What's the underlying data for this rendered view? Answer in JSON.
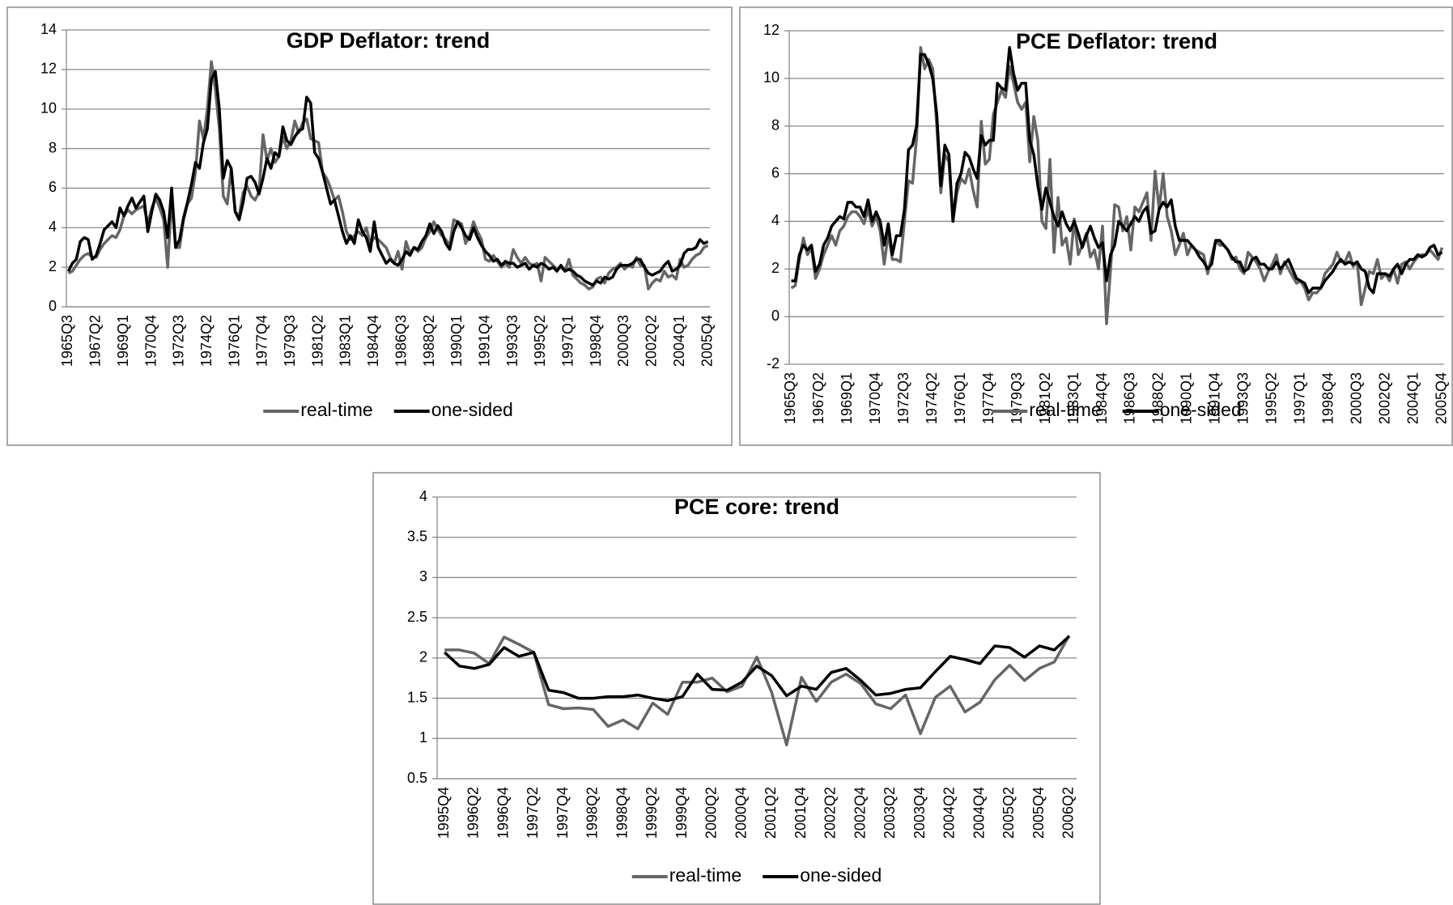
{
  "chart_data": [
    {
      "type": "line",
      "title": "GDP Deflator: trend",
      "categories": [
        "1965Q3",
        null,
        null,
        null,
        null,
        null,
        null,
        "1967Q2",
        null,
        null,
        null,
        null,
        null,
        null,
        "1969Q1",
        null,
        null,
        null,
        null,
        null,
        null,
        "1970Q4",
        null,
        null,
        null,
        null,
        null,
        null,
        "1972Q3",
        null,
        null,
        null,
        null,
        null,
        null,
        "1974Q2",
        null,
        null,
        null,
        null,
        null,
        null,
        "1976Q1",
        null,
        null,
        null,
        null,
        null,
        null,
        "1977Q4",
        null,
        null,
        null,
        null,
        null,
        null,
        "1979Q3",
        null,
        null,
        null,
        null,
        null,
        null,
        "1981Q2",
        null,
        null,
        null,
        null,
        null,
        null,
        "1983Q1",
        null,
        null,
        null,
        null,
        null,
        null,
        "1984Q4",
        null,
        null,
        null,
        null,
        null,
        null,
        "1986Q3",
        null,
        null,
        null,
        null,
        null,
        null,
        "1988Q2",
        null,
        null,
        null,
        null,
        null,
        null,
        "1990Q1",
        null,
        null,
        null,
        null,
        null,
        null,
        "1991Q4",
        null,
        null,
        null,
        null,
        null,
        null,
        "1993Q3",
        null,
        null,
        null,
        null,
        null,
        null,
        "1995Q2",
        null,
        null,
        null,
        null,
        null,
        null,
        "1997Q1",
        null,
        null,
        null,
        null,
        null,
        null,
        "1998Q4",
        null,
        null,
        null,
        null,
        null,
        null,
        "2000Q3",
        null,
        null,
        null,
        null,
        null,
        null,
        "2002Q2",
        null,
        null,
        null,
        null,
        null,
        null,
        "2004Q1",
        null,
        null,
        null,
        null,
        null,
        null,
        "2005Q4"
      ],
      "series": [
        {
          "name": "real-time",
          "color": "#666666",
          "values": [
            1.7,
            1.8,
            2.1,
            2.4,
            2.6,
            2.7,
            2.5,
            2.5,
            2.9,
            3.2,
            3.4,
            3.6,
            3.5,
            3.9,
            4.6,
            4.9,
            4.7,
            4.9,
            5.0,
            5.1,
            4.2,
            5.0,
            5.5,
            5.0,
            4.4,
            2.0,
            5.5,
            3.0,
            3.0,
            4.4,
            5.2,
            5.5,
            6.8,
            9.4,
            8.5,
            10.0,
            12.4,
            11.0,
            9.0,
            5.6,
            5.2,
            7.0,
            4.8,
            4.6,
            5.8,
            6.1,
            5.6,
            5.4,
            5.8,
            8.7,
            7.4,
            8.0,
            7.3,
            7.6,
            8.6,
            8.0,
            8.4,
            9.4,
            8.8,
            9.3,
            9.5,
            8.5,
            8.4,
            8.3,
            6.8,
            6.5,
            6.0,
            5.4,
            5.6,
            4.8,
            3.8,
            3.4,
            3.6,
            3.8,
            3.6,
            4.0,
            3.2,
            3.5,
            3.4,
            3.2,
            3.0,
            2.5,
            2.2,
            2.8,
            1.9,
            3.3,
            2.7,
            3.0,
            2.8,
            3.0,
            3.5,
            3.8,
            4.3,
            3.9,
            3.6,
            3.4,
            3.1,
            4.4,
            4.3,
            4.2,
            3.2,
            3.6,
            4.3,
            3.8,
            3.4,
            2.4,
            2.3,
            2.6,
            2.3,
            2.0,
            2.2,
            2.0,
            2.9,
            2.5,
            2.2,
            2.5,
            2.2,
            2.1,
            2.2,
            1.3,
            2.5,
            2.3,
            2.1,
            1.9,
            2.0,
            1.8,
            2.4,
            1.6,
            1.4,
            1.2,
            1.1,
            0.9,
            1.0,
            1.4,
            1.5,
            1.2,
            1.7,
            1.9,
            2.0,
            2.2,
            1.9,
            2.1,
            2.0,
            2.5,
            2.1,
            2.1,
            0.9,
            1.2,
            1.4,
            1.3,
            1.8,
            1.5,
            1.6,
            1.4,
            2.4,
            2.0,
            2.1,
            2.4,
            2.6,
            2.7,
            3.0,
            3.1
          ]
        },
        {
          "name": "one-sided",
          "color": "#000000",
          "values": [
            1.8,
            2.2,
            2.4,
            3.3,
            3.5,
            3.4,
            2.4,
            2.6,
            3.2,
            3.9,
            4.1,
            4.3,
            4.0,
            5.0,
            4.6,
            5.1,
            5.5,
            5.0,
            5.3,
            5.6,
            3.8,
            4.8,
            5.7,
            5.4,
            4.8,
            3.5,
            6.0,
            3.0,
            3.4,
            4.5,
            5.3,
            6.2,
            7.3,
            7.0,
            8.3,
            9.0,
            11.5,
            11.9,
            10.0,
            6.5,
            7.4,
            7.0,
            4.8,
            4.4,
            5.3,
            6.5,
            6.6,
            6.3,
            5.7,
            6.5,
            7.5,
            7.0,
            7.8,
            7.6,
            9.1,
            8.4,
            8.2,
            8.6,
            8.9,
            9.0,
            10.6,
            10.3,
            7.8,
            7.5,
            6.8,
            6.0,
            5.2,
            5.4,
            4.6,
            3.8,
            3.2,
            3.6,
            3.2,
            4.4,
            3.8,
            3.5,
            2.8,
            4.3,
            3.0,
            2.6,
            2.2,
            2.4,
            2.2,
            2.1,
            2.4,
            2.8,
            2.6,
            3.0,
            2.9,
            3.3,
            3.6,
            4.2,
            3.7,
            4.1,
            3.8,
            3.2,
            2.9,
            3.8,
            4.3,
            4.0,
            3.6,
            3.4,
            4.0,
            3.5,
            3.1,
            2.8,
            2.6,
            2.3,
            2.4,
            2.1,
            2.3,
            2.2,
            2.2,
            2.0,
            2.1,
            2.2,
            1.9,
            2.1,
            2.0,
            2.2,
            2.1,
            1.9,
            2.0,
            1.8,
            2.1,
            1.8,
            1.9,
            1.8,
            1.6,
            1.5,
            1.3,
            1.2,
            1.1,
            1.3,
            1.2,
            1.5,
            1.4,
            1.5,
            1.9,
            2.1,
            2.1,
            2.1,
            2.2,
            2.4,
            2.4,
            2.0,
            1.7,
            1.6,
            1.7,
            1.8,
            2.1,
            2.3,
            1.8,
            1.9,
            2.1,
            2.7,
            2.9,
            2.9,
            3.0,
            3.4,
            3.2,
            3.3
          ]
        }
      ],
      "ylim": [
        0,
        14
      ],
      "yticks": [
        0,
        2,
        4,
        6,
        8,
        10,
        12,
        14
      ],
      "grid": true,
      "legend": "bottom"
    },
    {
      "type": "line",
      "title": "PCE Deflator: trend",
      "categories": [
        "1965Q3",
        null,
        null,
        null,
        null,
        null,
        null,
        "1967Q2",
        null,
        null,
        null,
        null,
        null,
        null,
        "1969Q1",
        null,
        null,
        null,
        null,
        null,
        null,
        "1970Q4",
        null,
        null,
        null,
        null,
        null,
        null,
        "1972Q3",
        null,
        null,
        null,
        null,
        null,
        null,
        "1974Q2",
        null,
        null,
        null,
        null,
        null,
        null,
        "1976Q1",
        null,
        null,
        null,
        null,
        null,
        null,
        "1977Q4",
        null,
        null,
        null,
        null,
        null,
        null,
        "1979Q3",
        null,
        null,
        null,
        null,
        null,
        null,
        "1981Q2",
        null,
        null,
        null,
        null,
        null,
        null,
        "1983Q1",
        null,
        null,
        null,
        null,
        null,
        null,
        "1984Q4",
        null,
        null,
        null,
        null,
        null,
        null,
        "1986Q3",
        null,
        null,
        null,
        null,
        null,
        null,
        "1988Q2",
        null,
        null,
        null,
        null,
        null,
        null,
        "1990Q1",
        null,
        null,
        null,
        null,
        null,
        null,
        "1991Q4",
        null,
        null,
        null,
        null,
        null,
        null,
        "1993Q3",
        null,
        null,
        null,
        null,
        null,
        null,
        "1995Q2",
        null,
        null,
        null,
        null,
        null,
        null,
        "1997Q1",
        null,
        null,
        null,
        null,
        null,
        null,
        "1998Q4",
        null,
        null,
        null,
        null,
        null,
        null,
        "2000Q3",
        null,
        null,
        null,
        null,
        null,
        null,
        "2002Q2",
        null,
        null,
        null,
        null,
        null,
        null,
        "2004Q1",
        null,
        null,
        null,
        null,
        null,
        null,
        "2005Q4"
      ],
      "series": [
        {
          "name": "real-time",
          "color": "#666666",
          "values": [
            1.2,
            1.3,
            2.4,
            3.3,
            2.6,
            2.9,
            1.6,
            2.0,
            2.6,
            3.0,
            3.4,
            3.0,
            3.6,
            3.8,
            4.2,
            4.4,
            4.4,
            4.2,
            3.9,
            4.5,
            3.8,
            4.2,
            3.6,
            2.2,
            3.5,
            2.4,
            2.4,
            2.3,
            4.0,
            5.7,
            5.6,
            7.5,
            11.3,
            10.4,
            10.8,
            10.4,
            8.0,
            5.2,
            6.8,
            6.5,
            4.0,
            5.2,
            5.8,
            5.6,
            6.2,
            5.3,
            4.6,
            8.2,
            6.4,
            6.6,
            8.5,
            9.0,
            9.5,
            9.2,
            10.5,
            9.8,
            9.0,
            8.7,
            9.0,
            6.5,
            8.4,
            7.4,
            4.0,
            3.7,
            6.6,
            2.7,
            5.0,
            3.0,
            3.3,
            2.2,
            4.1,
            2.6,
            3.0,
            3.5,
            2.5,
            2.8,
            2.0,
            3.8,
            -0.3,
            2.0,
            4.7,
            4.6,
            3.6,
            4.2,
            2.8,
            4.6,
            4.4,
            4.8,
            5.2,
            3.2,
            6.1,
            4.5,
            6.0,
            4.2,
            3.6,
            2.6,
            3.0,
            3.5,
            2.6,
            3.0,
            2.8,
            2.7,
            2.6,
            1.8,
            2.5,
            3.2,
            3.0,
            3.0,
            2.8,
            2.4,
            2.5,
            2.0,
            1.8,
            2.7,
            2.5,
            2.3,
            2.0,
            1.5,
            1.9,
            2.2,
            2.6,
            1.8,
            2.3,
            2.0,
            1.7,
            1.4,
            1.5,
            1.2,
            0.7,
            1.0,
            1.0,
            1.2,
            1.8,
            2.0,
            2.2,
            2.7,
            2.3,
            2.3,
            2.7,
            2.1,
            2.3,
            0.5,
            1.2,
            1.9,
            1.8,
            2.4,
            1.6,
            1.8,
            1.5,
            2.0,
            1.4,
            2.2,
            2.3,
            2.0,
            2.3,
            2.5,
            2.6,
            2.6,
            2.8,
            2.6,
            2.4,
            2.9
          ]
        },
        {
          "name": "one-sided",
          "color": "#000000",
          "values": [
            1.5,
            1.5,
            2.6,
            3.0,
            2.8,
            3.0,
            1.9,
            2.2,
            3.0,
            3.3,
            3.8,
            4.0,
            4.2,
            4.1,
            4.8,
            4.8,
            4.6,
            4.6,
            4.2,
            4.9,
            4.0,
            4.4,
            4.0,
            3.0,
            3.9,
            2.6,
            3.4,
            3.4,
            4.5,
            7.0,
            7.2,
            8.0,
            11.0,
            11.0,
            10.6,
            10.0,
            8.5,
            5.5,
            7.2,
            6.8,
            4.0,
            5.6,
            6.0,
            6.9,
            6.7,
            6.2,
            5.8,
            7.6,
            7.2,
            7.4,
            7.4,
            9.8,
            9.6,
            9.5,
            11.3,
            10.2,
            9.5,
            9.8,
            9.8,
            7.4,
            6.8,
            5.5,
            4.5,
            5.4,
            4.8,
            4.2,
            3.8,
            4.4,
            3.9,
            3.6,
            4.0,
            3.5,
            2.9,
            3.4,
            3.8,
            3.3,
            2.9,
            3.1,
            1.5,
            2.6,
            3.0,
            4.0,
            3.8,
            3.6,
            3.9,
            4.2,
            4.0,
            4.4,
            4.6,
            3.5,
            3.6,
            4.5,
            4.8,
            4.6,
            4.9,
            3.8,
            3.2,
            3.2,
            3.2,
            3.0,
            2.8,
            2.5,
            2.3,
            2.0,
            2.2,
            3.2,
            3.2,
            3.0,
            2.8,
            2.5,
            2.3,
            2.3,
            1.9,
            2.0,
            2.4,
            2.5,
            2.2,
            2.2,
            2.0,
            2.0,
            2.3,
            2.0,
            2.2,
            2.4,
            2.0,
            1.6,
            1.5,
            1.4,
            1.0,
            1.2,
            1.2,
            1.2,
            1.5,
            1.7,
            1.9,
            2.2,
            2.4,
            2.2,
            2.3,
            2.2,
            2.3,
            2.0,
            1.9,
            1.2,
            1.0,
            1.8,
            1.8,
            1.8,
            1.7,
            2.0,
            2.2,
            1.8,
            2.2,
            2.4,
            2.4,
            2.6,
            2.5,
            2.6,
            2.9,
            3.0,
            2.6,
            2.7
          ]
        }
      ],
      "ylim": [
        -2,
        12
      ],
      "yticks": [
        -2,
        0,
        2,
        4,
        6,
        8,
        10,
        12
      ],
      "grid": true,
      "legend": "bottom"
    },
    {
      "type": "line",
      "title": "PCE core: trend",
      "categories": [
        "1995Q4",
        null,
        "1996Q2",
        null,
        "1996Q4",
        null,
        "1997Q2",
        null,
        "1997Q4",
        null,
        "1998Q2",
        null,
        "1998Q4",
        null,
        "1999Q2",
        null,
        "1999Q4",
        null,
        "2000Q2",
        null,
        "2000Q4",
        null,
        "2001Q2",
        null,
        "2001Q4",
        null,
        "2002Q2",
        null,
        "2002Q4",
        null,
        "2003Q2",
        null,
        "2003Q4",
        null,
        "2004Q2",
        null,
        "2004Q4",
        null,
        "2005Q2",
        null,
        "2005Q4",
        null,
        "2006Q2"
      ],
      "series": [
        {
          "name": "real-time",
          "color": "#666666",
          "values": [
            2.1,
            2.1,
            2.06,
            1.93,
            2.26,
            2.17,
            2.07,
            1.42,
            1.37,
            1.38,
            1.36,
            1.15,
            1.23,
            1.12,
            1.44,
            1.3,
            1.7,
            1.7,
            1.75,
            1.58,
            1.65,
            2.01,
            1.57,
            0.92,
            1.76,
            1.46,
            1.7,
            1.8,
            1.68,
            1.43,
            1.37,
            1.54,
            1.06,
            1.51,
            1.65,
            1.33,
            1.45,
            1.73,
            1.91,
            1.72,
            1.87,
            1.95,
            2.28
          ]
        },
        {
          "name": "one-sided",
          "color": "#000000",
          "values": [
            2.07,
            1.9,
            1.87,
            1.92,
            2.13,
            2.02,
            2.07,
            1.6,
            1.57,
            1.5,
            1.5,
            1.52,
            1.52,
            1.54,
            1.5,
            1.47,
            1.52,
            1.8,
            1.61,
            1.6,
            1.7,
            1.9,
            1.78,
            1.53,
            1.65,
            1.61,
            1.82,
            1.87,
            1.72,
            1.54,
            1.56,
            1.61,
            1.63,
            1.83,
            2.02,
            1.98,
            1.93,
            2.15,
            2.13,
            2.01,
            2.15,
            2.1,
            2.27
          ]
        }
      ],
      "ylim": [
        0.5,
        4
      ],
      "yticks": [
        0.5,
        1,
        1.5,
        2,
        2.5,
        3,
        3.5,
        4
      ],
      "grid": true,
      "legend": "bottom"
    }
  ]
}
